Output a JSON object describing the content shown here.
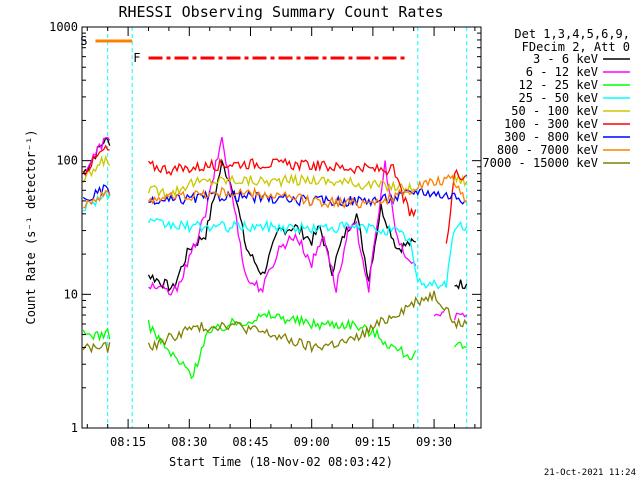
{
  "chart_data": {
    "type": "line",
    "title": "RHESSI Observing Summary Count Rates",
    "xlabel": "Start Time (18-Nov-02 08:03:42)",
    "ylabel": "Count Rate (s⁻¹ detector⁻¹)",
    "x_range": [
      "08:04",
      "09:40"
    ],
    "ylim": [
      1,
      1000
    ],
    "y_scale": "log",
    "x_ticks": [
      "08:15",
      "08:30",
      "08:45",
      "09:00",
      "09:15",
      "09:30"
    ],
    "y_ticks": [
      "1",
      "10",
      "100",
      "1000"
    ],
    "legend_header": [
      "Det 1,3,4,5,6,9,",
      "FDecim 2, Att 0"
    ],
    "legend_position": "right",
    "footer": "21-Oct-2021 11:24",
    "flags": [
      {
        "label": "S",
        "color": "#ff8000",
        "start": "08:07",
        "end": "08:16"
      },
      {
        "label": "F",
        "color": "#ff0000",
        "start": "08:20",
        "end": "09:23"
      }
    ],
    "night_markers": [
      "08:10",
      "08:16",
      "09:26",
      "09:38"
    ],
    "series": [
      {
        "name": "3 - 6 keV",
        "color": "#000000",
        "points": [
          [
            "08:04",
            80
          ],
          [
            "08:09",
            140
          ],
          [
            "08:11",
            0
          ],
          [
            "08:16",
            0
          ],
          [
            "08:20",
            14
          ],
          [
            "08:26",
            11
          ],
          [
            "08:30",
            22
          ],
          [
            "08:34",
            28
          ],
          [
            "08:38",
            95
          ],
          [
            "08:41",
            60
          ],
          [
            "08:44",
            22
          ],
          [
            "08:48",
            14
          ],
          [
            "08:52",
            30
          ],
          [
            "08:56",
            32
          ],
          [
            "09:00",
            25
          ],
          [
            "09:02",
            32
          ],
          [
            "09:05",
            15
          ],
          [
            "09:08",
            28
          ],
          [
            "09:11",
            40
          ],
          [
            "09:14",
            13
          ],
          [
            "09:17",
            45
          ],
          [
            "09:21",
            22
          ],
          [
            "09:24",
            24
          ],
          [
            "09:26",
            0
          ],
          [
            "09:33",
            0
          ],
          [
            "09:35",
            12
          ],
          [
            "09:38",
            12
          ]
        ]
      },
      {
        "name": "6 - 12 keV",
        "color": "#ff00ff",
        "points": [
          [
            "08:04",
            80
          ],
          [
            "08:09",
            140
          ],
          [
            "08:11",
            0
          ],
          [
            "08:16",
            0
          ],
          [
            "08:20",
            12
          ],
          [
            "08:26",
            10
          ],
          [
            "08:30",
            18
          ],
          [
            "08:34",
            40
          ],
          [
            "08:38",
            150
          ],
          [
            "08:41",
            45
          ],
          [
            "08:44",
            13
          ],
          [
            "08:48",
            11
          ],
          [
            "08:52",
            22
          ],
          [
            "08:56",
            28
          ],
          [
            "09:00",
            17
          ],
          [
            "09:03",
            28
          ],
          [
            "09:06",
            11
          ],
          [
            "09:09",
            30
          ],
          [
            "09:11",
            32
          ],
          [
            "09:14",
            11
          ],
          [
            "09:18",
            95
          ],
          [
            "09:21",
            25
          ],
          [
            "09:24",
            17
          ],
          [
            "09:26",
            0
          ],
          [
            "09:30",
            7
          ],
          [
            "09:33",
            0
          ],
          [
            "09:35",
            7
          ],
          [
            "09:38",
            7
          ]
        ]
      },
      {
        "name": "12 - 25 keV",
        "color": "#00ff00",
        "points": [
          [
            "08:04",
            5
          ],
          [
            "08:09",
            5
          ],
          [
            "08:11",
            0
          ],
          [
            "08:16",
            0
          ],
          [
            "08:20",
            6
          ],
          [
            "08:24",
            4
          ],
          [
            "08:28",
            3
          ],
          [
            "08:31",
            2.5
          ],
          [
            "08:34",
            5
          ],
          [
            "08:40",
            6
          ],
          [
            "08:50",
            7
          ],
          [
            "09:00",
            6
          ],
          [
            "09:10",
            6
          ],
          [
            "09:16",
            5
          ],
          [
            "09:20",
            4
          ],
          [
            "09:24",
            3.5
          ],
          [
            "09:26",
            0
          ],
          [
            "09:33",
            0
          ],
          [
            "09:35",
            4
          ],
          [
            "09:38",
            4
          ]
        ]
      },
      {
        "name": "25 - 50 keV",
        "color": "#00ffff",
        "points": [
          [
            "08:04",
            45
          ],
          [
            "08:09",
            55
          ],
          [
            "08:11",
            0
          ],
          [
            "08:16",
            0
          ],
          [
            "08:20",
            34
          ],
          [
            "08:30",
            32
          ],
          [
            "08:40",
            32
          ],
          [
            "08:50",
            32
          ],
          [
            "09:00",
            31
          ],
          [
            "09:10",
            32
          ],
          [
            "09:20",
            30
          ],
          [
            "09:24",
            26
          ],
          [
            "09:26",
            12
          ],
          [
            "09:33",
            12
          ],
          [
            "09:35",
            32
          ],
          [
            "09:38",
            32
          ]
        ]
      },
      {
        "name": "50 - 100 keV",
        "color": "#c8c800",
        "points": [
          [
            "08:04",
            70
          ],
          [
            "08:09",
            100
          ],
          [
            "08:11",
            0
          ],
          [
            "08:16",
            0
          ],
          [
            "08:20",
            60
          ],
          [
            "08:26",
            58
          ],
          [
            "08:30",
            68
          ],
          [
            "08:40",
            72
          ],
          [
            "08:50",
            70
          ],
          [
            "09:00",
            72
          ],
          [
            "09:10",
            68
          ],
          [
            "09:20",
            64
          ],
          [
            "09:24",
            62
          ],
          [
            "09:26",
            0
          ],
          [
            "09:33",
            0
          ],
          [
            "09:35",
            75
          ],
          [
            "09:38",
            70
          ]
        ]
      },
      {
        "name": "100 - 300 keV",
        "color": "#ff0000",
        "points": [
          [
            "08:04",
            82
          ],
          [
            "08:09",
            120
          ],
          [
            "08:11",
            0
          ],
          [
            "08:16",
            0
          ],
          [
            "08:20",
            92
          ],
          [
            "08:26",
            85
          ],
          [
            "08:30",
            88
          ],
          [
            "08:40",
            95
          ],
          [
            "08:50",
            95
          ],
          [
            "09:00",
            92
          ],
          [
            "09:10",
            88
          ],
          [
            "09:20",
            85
          ],
          [
            "09:24",
            40
          ],
          [
            "09:26",
            0
          ],
          [
            "09:33",
            22
          ],
          [
            "09:35",
            80
          ],
          [
            "09:38",
            78
          ]
        ]
      },
      {
        "name": "300 - 800 keV",
        "color": "#0000ff",
        "points": [
          [
            "08:04",
            50
          ],
          [
            "08:09",
            60
          ],
          [
            "08:11",
            0
          ],
          [
            "08:16",
            0
          ],
          [
            "08:20",
            48
          ],
          [
            "08:30",
            52
          ],
          [
            "08:40",
            55
          ],
          [
            "08:50",
            52
          ],
          [
            "09:00",
            50
          ],
          [
            "09:10",
            50
          ],
          [
            "09:20",
            52
          ],
          [
            "09:26",
            60
          ],
          [
            "09:33",
            55
          ],
          [
            "09:35",
            55
          ],
          [
            "09:38",
            50
          ]
        ]
      },
      {
        "name": "800 - 7000 keV",
        "color": "#ff8000",
        "points": [
          [
            "08:04",
            48
          ],
          [
            "08:09",
            55
          ],
          [
            "08:11",
            0
          ],
          [
            "08:16",
            0
          ],
          [
            "08:20",
            52
          ],
          [
            "08:30",
            55
          ],
          [
            "08:40",
            58
          ],
          [
            "08:50",
            55
          ],
          [
            "09:00",
            50
          ],
          [
            "09:10",
            48
          ],
          [
            "09:20",
            52
          ],
          [
            "09:26",
            65
          ],
          [
            "09:33",
            72
          ],
          [
            "09:35",
            70
          ],
          [
            "09:38",
            50
          ]
        ]
      },
      {
        "name": "7000 - 15000 keV",
        "color": "#808000",
        "points": [
          [
            "08:04",
            4
          ],
          [
            "08:09",
            4
          ],
          [
            "08:11",
            0
          ],
          [
            "08:16",
            0
          ],
          [
            "08:20",
            4
          ],
          [
            "08:30",
            5.5
          ],
          [
            "08:40",
            6
          ],
          [
            "08:50",
            5
          ],
          [
            "09:00",
            4
          ],
          [
            "09:10",
            4.5
          ],
          [
            "09:20",
            7
          ],
          [
            "09:26",
            9
          ],
          [
            "09:30",
            10
          ],
          [
            "09:33",
            8
          ],
          [
            "09:35",
            6
          ],
          [
            "09:38",
            6
          ]
        ]
      }
    ]
  }
}
